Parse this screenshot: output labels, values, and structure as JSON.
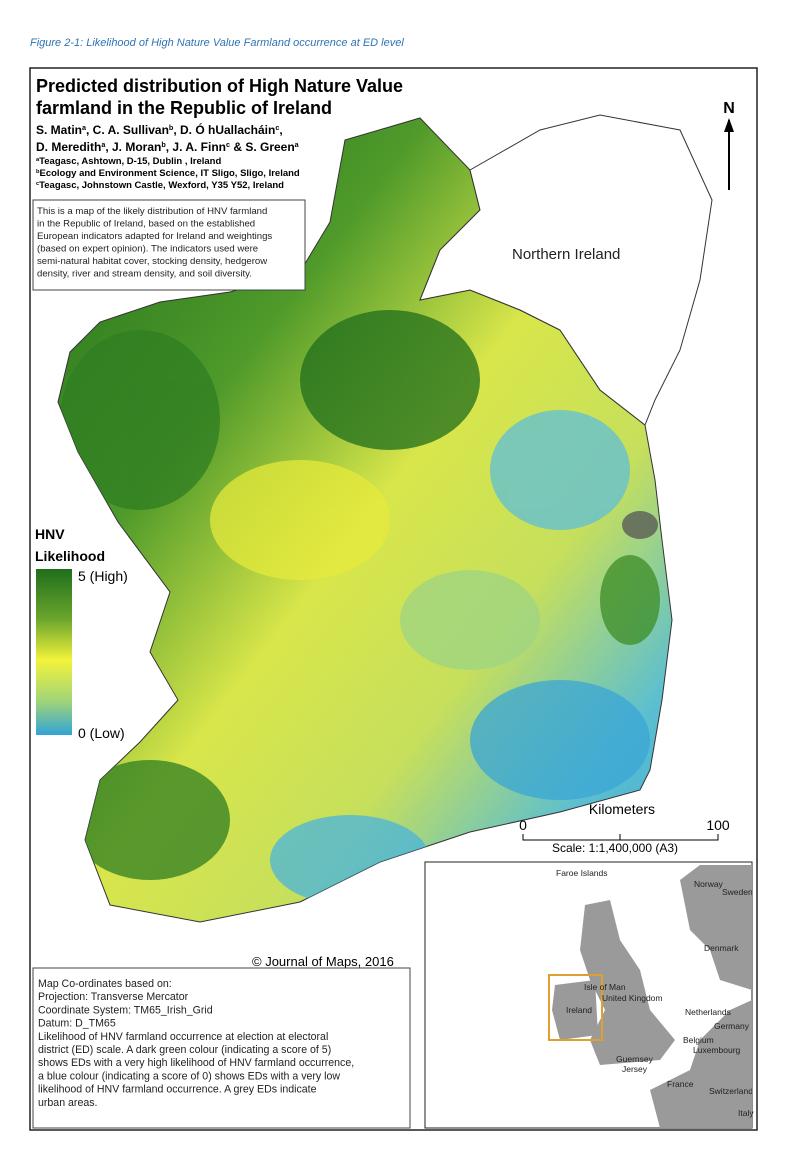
{
  "caption": "Figure 2-1: Likelihood of High Nature Value Farmland occurrence at ED level",
  "map": {
    "title_lines": [
      "Predicted distribution of High Nature Value",
      "farmland in the Republic of Ireland"
    ],
    "author_lines": [
      [
        {
          "text": "S. Matin"
        },
        {
          "sup": "a"
        },
        {
          "text": ", C. A. Sullivan"
        },
        {
          "sup": "b"
        },
        {
          "text": ", D. Ó hUallacháin"
        },
        {
          "sup": "c"
        },
        {
          "text": ","
        }
      ],
      [
        {
          "text": "D. Meredith"
        },
        {
          "sup": "a"
        },
        {
          "text": ", J. Moran"
        },
        {
          "sup": "b"
        },
        {
          "text": ", J. A. Finn"
        },
        {
          "sup": "c"
        },
        {
          "text": " & S. Green"
        },
        {
          "sup": "a"
        }
      ]
    ],
    "affiliations": [
      [
        {
          "sup": "a"
        },
        {
          "text": "Teagasc, Ashtown, D-15, Dublin , Ireland"
        }
      ],
      [
        {
          "sup": "b"
        },
        {
          "text": "Ecology and Environment Science, IT Sligo, Sligo, Ireland"
        }
      ],
      [
        {
          "sup": "c"
        },
        {
          "text": "Teagasc, Johnstown Castle, Wexford, Y35 Y52, Ireland"
        }
      ]
    ],
    "description_lines": [
      "This is a map of the likely distribution of HNV farmland",
      "in the Republic of Ireland, based on the  established",
      "European indicators adapted for Ireland and weightings",
      "(based on expert opinion). The indicators used were",
      "semi-natural habitat cover, stocking density, hedgerow",
      "density, river and stream density, and soil diversity."
    ],
    "region_label": "Northern Ireland",
    "north": "N",
    "legend": {
      "title_lines": [
        "HNV",
        "Likelihood"
      ],
      "high": "5 (High)",
      "low": "0 (Low)"
    },
    "scale": {
      "unit": "Kilometers",
      "start": "0",
      "end": "100",
      "ratio": "Scale: 1:1,400,000 (A3)"
    },
    "copyright": "© Journal of Maps, 2016",
    "inset_labels": [
      "Faroe Islands",
      "Norway",
      "Sweden",
      "Denmark",
      "Isle of Man",
      "United Kingdom",
      "Ireland",
      "Netherlands",
      "Germany",
      "Belgium",
      "Luxembourg",
      "Guernsey",
      "Jersey",
      "France",
      "Switzerland",
      "Italy"
    ],
    "notes_lines": [
      "Map Co-ordinates based on:",
      "Projection: Transverse Mercator",
      "Coordinate System: TM65_Irish_Grid",
      "Datum: D_TM65",
      "Likelihood of HNV farmland occurrence at election at electoral",
      "district (ED) scale. A dark green colour (indicating a score of 5)",
      "shows EDs with a very high likelihood of HNV farmland occurrence,",
      "a blue colour (indicating a score of 0) shows EDs with a very low",
      "likelihood of HNV farmland occurrence. A grey EDs indicate",
      "urban areas."
    ]
  }
}
